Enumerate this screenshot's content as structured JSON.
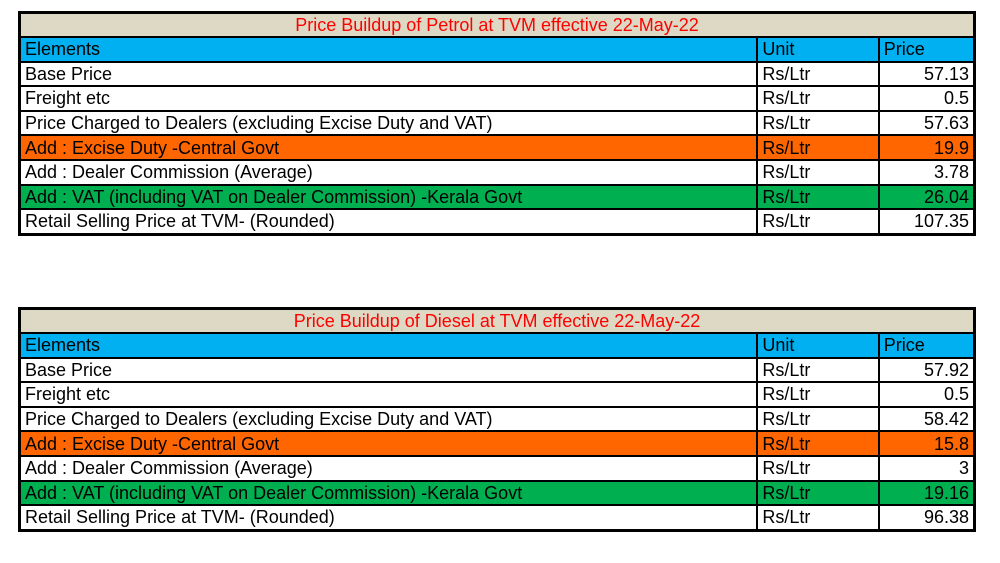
{
  "petrol": {
    "title": "Price Buildup of Petrol at TVM effective 22-May-22",
    "headers": [
      "Elements",
      "Unit",
      "Price"
    ],
    "rows": [
      {
        "element": "Base Price",
        "unit": "Rs/Ltr",
        "price": "57.13"
      },
      {
        "element": "Freight etc",
        "unit": "Rs/Ltr",
        "price": "0.5"
      },
      {
        "element": "Price Charged to Dealers (excluding Excise Duty and VAT)",
        "unit": "Rs/Ltr",
        "price": "57.63"
      },
      {
        "element": "Add : Excise Duty -Central Govt",
        "unit": "Rs/Ltr",
        "price": "19.9"
      },
      {
        "element": "Add : Dealer Commission (Average)",
        "unit": "Rs/Ltr",
        "price": "3.78"
      },
      {
        "element": "Add : VAT (including VAT on Dealer Commission) -Kerala Govt",
        "unit": "Rs/Ltr",
        "price": "26.04"
      },
      {
        "element": "Retail Selling Price at TVM- (Rounded)",
        "unit": "Rs/Ltr",
        "price": "107.35"
      }
    ]
  },
  "diesel": {
    "title": "Price Buildup of Diesel at TVM effective 22-May-22",
    "headers": [
      "Elements",
      "Unit",
      "Price"
    ],
    "rows": [
      {
        "element": "Base Price",
        "unit": "Rs/Ltr",
        "price": "57.92"
      },
      {
        "element": "Freight etc",
        "unit": "Rs/Ltr",
        "price": "0.5"
      },
      {
        "element": "Price Charged to Dealers (excluding Excise Duty and VAT)",
        "unit": "Rs/Ltr",
        "price": "58.42"
      },
      {
        "element": "Add : Excise Duty -Central Govt",
        "unit": "Rs/Ltr",
        "price": "15.8"
      },
      {
        "element": "Add : Dealer Commission (Average)",
        "unit": "Rs/Ltr",
        "price": "3"
      },
      {
        "element": "Add : VAT (including VAT on Dealer Commission) -Kerala Govt",
        "unit": "Rs/Ltr",
        "price": "19.16"
      },
      {
        "element": "Retail Selling Price at TVM- (Rounded)",
        "unit": "Rs/Ltr",
        "price": "96.38"
      }
    ]
  },
  "colors": {
    "title_bg": "#ddd9c4",
    "title_text": "#ff0000",
    "header_bg": "#00b0f0",
    "excise_bg": "#ff6600",
    "vat_bg": "#00b050"
  }
}
